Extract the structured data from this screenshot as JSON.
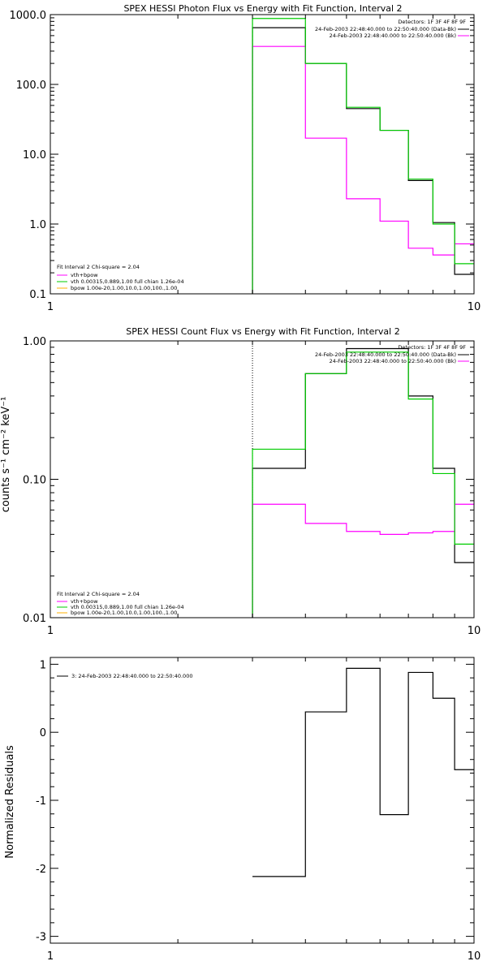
{
  "colors": {
    "data": "#000000",
    "background": "#ff00ff",
    "vth": "#00cc00",
    "bpow": "#ffb000"
  },
  "chart_data": [
    {
      "type": "line",
      "step": true,
      "title": "SPEX HESSI Photon Flux vs Energy with Fit Function, Interval 2",
      "xlabel": "",
      "ylabel": "",
      "xscale": "log",
      "yscale": "log",
      "xlim": [
        1,
        10
      ],
      "ylim": [
        0.1,
        1000
      ],
      "xticks": [
        {
          "v": 1,
          "label": "1"
        },
        {
          "v": 10,
          "label": "10"
        }
      ],
      "yticks": [
        {
          "v": 0.1,
          "label": "0.1"
        },
        {
          "v": 1,
          "label": "1.0"
        },
        {
          "v": 10,
          "label": "10.0"
        },
        {
          "v": 100,
          "label": "100.0"
        },
        {
          "v": 1000,
          "label": "1000.0"
        }
      ],
      "x_edges": [
        3.0,
        4.0,
        5.0,
        6.0,
        7.0,
        8.0,
        9.0,
        10.0
      ],
      "series": [
        {
          "name": "data",
          "color": "#000000",
          "values": [
            650,
            200,
            45,
            22,
            4.2,
            1.05,
            0.19
          ]
        },
        {
          "name": "background",
          "color": "#ff00ff",
          "values": [
            350,
            17,
            2.3,
            1.1,
            0.45,
            0.36,
            0.52
          ]
        },
        {
          "name": "vth+bpow",
          "color": "#00cc00",
          "values": [
            880,
            200,
            47,
            22,
            4.4,
            1.0,
            0.27
          ]
        }
      ],
      "vline": {
        "x": 3.0,
        "style": "dashed",
        "color": "#00cc00"
      },
      "detectors_label": "Detectors: 1F 3F 4F 8F 9F",
      "legend_top": [
        {
          "text": "24-Feb-2003 22:48:40.000 to 22:50:40.000 (Data-Bk)",
          "color": "#000000"
        },
        {
          "text": "24-Feb-2003 22:48:40.000 to 22:50:40.000 (Bk)",
          "color": "#ff00ff"
        }
      ],
      "fit_legend": {
        "header": "Fit Interval 2   Chi-square = 2.04",
        "items": [
          {
            "text": "vth+bpow",
            "color": "#ff00ff"
          },
          {
            "text": "vth 0.00315,0.889,1.00  full chian 1.26e-04",
            "color": "#00cc00"
          },
          {
            "text": "bpow 1.00e-20,1.00,10.0,1.00,100.,1.00",
            "color": "#ffb000"
          }
        ]
      }
    },
    {
      "type": "line",
      "step": true,
      "title": "SPEX HESSI Count Flux vs Energy with Fit Function, Interval 2",
      "xlabel": "",
      "ylabel": "counts s⁻¹ cm⁻² keV⁻¹",
      "xscale": "log",
      "yscale": "log",
      "xlim": [
        1,
        10
      ],
      "ylim": [
        0.01,
        1
      ],
      "xticks": [
        {
          "v": 1,
          "label": "1"
        },
        {
          "v": 10,
          "label": "10"
        }
      ],
      "yticks": [
        {
          "v": 0.01,
          "label": "0.01"
        },
        {
          "v": 0.1,
          "label": "0.10"
        },
        {
          "v": 1,
          "label": "1.00"
        }
      ],
      "x_edges": [
        3.0,
        4.0,
        5.0,
        6.0,
        7.0,
        8.0,
        9.0,
        10.0
      ],
      "series": [
        {
          "name": "data",
          "color": "#000000",
          "values": [
            0.12,
            0.58,
            0.88,
            0.88,
            0.4,
            0.12,
            0.025
          ]
        },
        {
          "name": "background",
          "color": "#ff00ff",
          "values": [
            0.066,
            0.048,
            0.042,
            0.04,
            0.041,
            0.042,
            0.066
          ]
        },
        {
          "name": "vth+bpow",
          "color": "#00cc00",
          "values": [
            0.165,
            0.58,
            0.83,
            0.83,
            0.38,
            0.11,
            0.034
          ]
        }
      ],
      "vline": {
        "x": 3.0,
        "style": "dotted",
        "color": "#000000"
      },
      "detectors_label": "Detectors: 1F 3F 4F 8F 9F",
      "legend_top": [
        {
          "text": "24-Feb-2003 22:48:40.000 to 22:50:40.000 (Data-Bk)",
          "color": "#000000"
        },
        {
          "text": "24-Feb-2003 22:48:40.000 to 22:50:40.000 (Bk)",
          "color": "#ff00ff"
        }
      ],
      "fit_legend": {
        "header": "Fit Interval 2   Chi-square = 2.04",
        "items": [
          {
            "text": "vth+bpow",
            "color": "#ff00ff"
          },
          {
            "text": "vth 0.00315,0.889,1.00  full chian 1.26e-04",
            "color": "#00cc00"
          },
          {
            "text": "bpow 1.00e-20,1.00,10.0,1.00,100.,1.00",
            "color": "#ffb000"
          }
        ]
      }
    },
    {
      "type": "line",
      "step": true,
      "title": "",
      "xlabel": "",
      "ylabel": "Normalized Residuals",
      "xscale": "log",
      "yscale": "linear",
      "xlim": [
        1,
        10
      ],
      "ylim": [
        -3.1,
        1.1
      ],
      "xticks": [
        {
          "v": 1,
          "label": "1"
        },
        {
          "v": 10,
          "label": "10"
        }
      ],
      "yticks": [
        {
          "v": -3,
          "label": "-3"
        },
        {
          "v": -2,
          "label": "-2"
        },
        {
          "v": -1,
          "label": "-1"
        },
        {
          "v": 0,
          "label": "0"
        },
        {
          "v": 1,
          "label": "1"
        }
      ],
      "x_edges": [
        3.0,
        4.0,
        5.0,
        6.0,
        7.0,
        8.0,
        9.0,
        10.0
      ],
      "series": [
        {
          "name": "residuals",
          "color": "#000000",
          "values": [
            -2.12,
            0.3,
            0.94,
            -1.21,
            0.88,
            0.5,
            -0.55
          ]
        }
      ],
      "legend_top": [
        {
          "text": "3: 24-Feb-2003 22:48:40.000 to 22:50:40.000",
          "color": "#000000"
        }
      ]
    }
  ]
}
